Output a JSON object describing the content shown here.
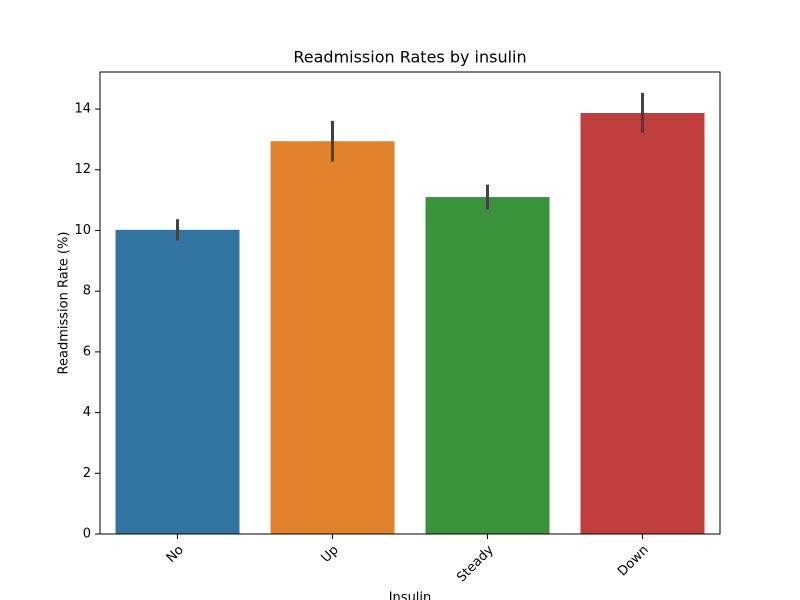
{
  "chart_data": {
    "type": "bar",
    "title": "Readmission Rates by insulin",
    "xlabel": "Insulin",
    "ylabel": "Readmission Rate (%)",
    "categories": [
      "No",
      "Up",
      "Steady",
      "Down"
    ],
    "values": [
      10.02,
      12.94,
      11.1,
      13.87
    ],
    "errors": [
      0.35,
      0.67,
      0.41,
      0.66
    ],
    "colors": [
      "#3274a1",
      "#e1812c",
      "#3a923a",
      "#c03d3e"
    ],
    "ylim": [
      0,
      15.22
    ],
    "yticks": [
      0,
      2,
      4,
      6,
      8,
      10,
      12,
      14
    ],
    "grid": false
  }
}
